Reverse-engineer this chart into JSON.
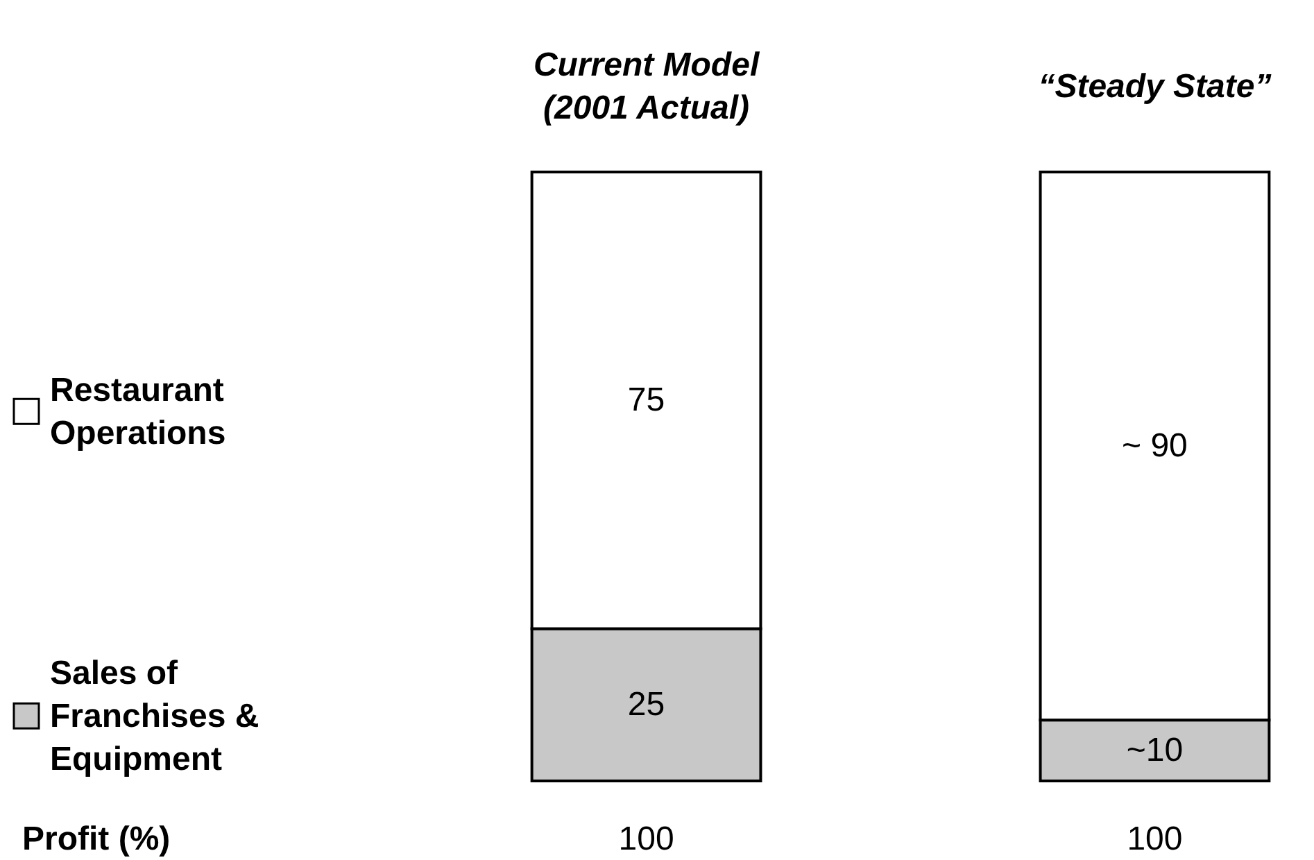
{
  "chart_data": {
    "type": "bar",
    "stacked": true,
    "categories": [
      "Current Model\n(2001 Actual)",
      "“Steady State”"
    ],
    "series": [
      {
        "name": "Sales of\nFranchises &\nEquipment",
        "color": "#c8c8c8",
        "values": [
          25,
          10
        ],
        "value_labels": [
          "25",
          "~10"
        ]
      },
      {
        "name": "Restaurant\nOperations",
        "color": "#ffffff",
        "values": [
          75,
          90
        ],
        "value_labels": [
          "75",
          "~ 90"
        ]
      }
    ],
    "totals": [
      "100",
      "100"
    ],
    "legend": "left",
    "annotations": [
      "Profit (%)"
    ]
  }
}
